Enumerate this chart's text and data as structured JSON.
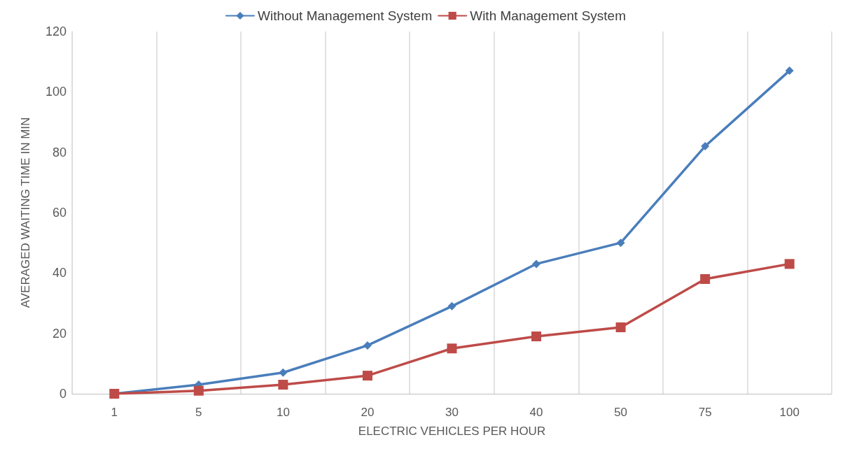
{
  "chart_data": {
    "type": "line",
    "xlabel": "ELECTRIC VEHICLES PER HOUR",
    "ylabel": "AVERAGED WAITING TIME IN MIN",
    "categories": [
      "1",
      "5",
      "10",
      "20",
      "30",
      "40",
      "50",
      "75",
      "100"
    ],
    "series": [
      {
        "name": "Without Management System",
        "color": "#4a7ebb",
        "marker": "diamond",
        "values": [
          0,
          3,
          7,
          16,
          29,
          43,
          50,
          82,
          107
        ]
      },
      {
        "name": "With Management System",
        "color": "#be4b48",
        "marker": "square",
        "values": [
          0,
          1,
          3,
          6,
          15,
          19,
          22,
          38,
          43
        ]
      }
    ],
    "ylim": [
      0,
      120
    ],
    "yticks": [
      0,
      20,
      40,
      60,
      80,
      100,
      120
    ],
    "grid": "x",
    "legend": "top",
    "line_style": "solid"
  }
}
